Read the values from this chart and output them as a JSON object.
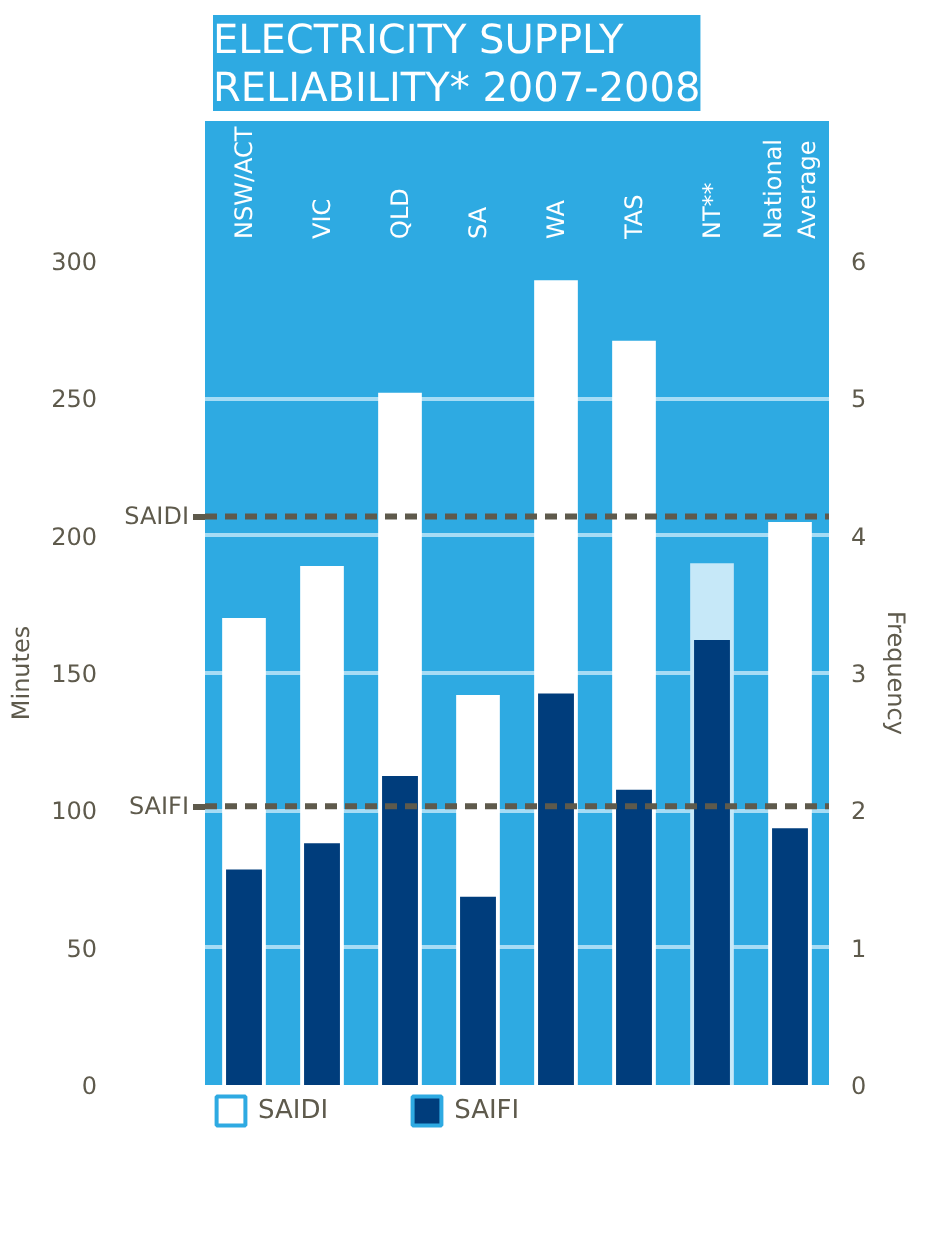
{
  "chart_data": {
    "type": "bar",
    "title": "ELECTRICITY SUPPLY\nRELIABILITY* 2007-2008",
    "categories": [
      "NSW/ACT",
      "VIC",
      "QLD",
      "SA",
      "WA",
      "TAS",
      "NT**",
      "National\nAverage"
    ],
    "ylabel": "Minutes",
    "y2label": "Frequency",
    "series": [
      {
        "name": "SAIDI",
        "color": "#ffffff",
        "colors": [
          "#ffffff",
          "#ffffff",
          "#ffffff",
          "#ffffff",
          "#ffffff",
          "#ffffff",
          "#c6e8f8",
          "#ffffff"
        ],
        "values": [
          170,
          189,
          252,
          142,
          293,
          271,
          190,
          205
        ]
      },
      {
        "name": "SAIFI",
        "color": "#003d7c",
        "axis": "y2",
        "values": [
          1.57,
          1.76,
          2.25,
          1.37,
          2.85,
          2.15,
          3.24,
          1.87
        ]
      }
    ],
    "ylim": [
      0,
      300
    ],
    "yticks": [
      0,
      50,
      100,
      150,
      200,
      250,
      300
    ],
    "y2lim": [
      0,
      6
    ],
    "y2ticks": [
      0,
      1,
      2,
      3,
      4,
      5,
      6
    ],
    "ref_lines": [
      {
        "axis": "y",
        "value": 207,
        "label": "SAIDI",
        "color": "#5e5a4c",
        "line_style": "dashed"
      },
      {
        "axis": "y2",
        "value": 2.03,
        "label": "SAIFI",
        "color": "#5e5a4c",
        "line_style": "dashed"
      }
    ],
    "grid": "y",
    "legend": "bottom"
  }
}
